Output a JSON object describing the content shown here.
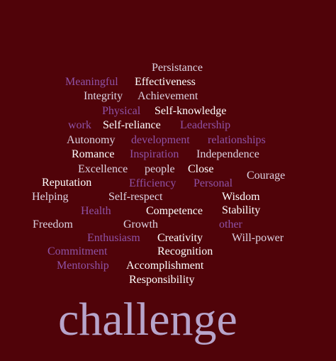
{
  "colors": {
    "background": "#500309",
    "white": "#ffffff",
    "light": "#dcd3e2",
    "purple": "#8f52a6",
    "lavender": "#b7a4ca"
  },
  "words": [
    {
      "text": "Persistance",
      "tone": "light"
    },
    {
      "text": "Meaningful",
      "tone": "purple"
    },
    {
      "text": "Effectiveness",
      "tone": "white"
    },
    {
      "text": "Integrity",
      "tone": "light"
    },
    {
      "text": "Achievement",
      "tone": "light"
    },
    {
      "text": "Physical",
      "tone": "purple"
    },
    {
      "text": "Self-knowledge",
      "tone": "white"
    },
    {
      "text": "work",
      "tone": "purple"
    },
    {
      "text": "Self-reliance",
      "tone": "white"
    },
    {
      "text": "Leadership",
      "tone": "purple"
    },
    {
      "text": "Autonomy",
      "tone": "light"
    },
    {
      "text": "development",
      "tone": "purple"
    },
    {
      "text": "relationships",
      "tone": "purple"
    },
    {
      "text": "Romance",
      "tone": "white"
    },
    {
      "text": "Inspiration",
      "tone": "purple"
    },
    {
      "text": "Independence",
      "tone": "light"
    },
    {
      "text": "Excellence",
      "tone": "light"
    },
    {
      "text": "people",
      "tone": "light"
    },
    {
      "text": "Close",
      "tone": "white"
    },
    {
      "text": "Courage",
      "tone": "light"
    },
    {
      "text": "Reputation",
      "tone": "white"
    },
    {
      "text": "Efficiency",
      "tone": "purple"
    },
    {
      "text": "Personal",
      "tone": "purple"
    },
    {
      "text": "Helping",
      "tone": "light"
    },
    {
      "text": "Self-respect",
      "tone": "light"
    },
    {
      "text": "Wisdom",
      "tone": "white"
    },
    {
      "text": "Health",
      "tone": "purple"
    },
    {
      "text": "Competence",
      "tone": "white"
    },
    {
      "text": "Stability",
      "tone": "white"
    },
    {
      "text": "Freedom",
      "tone": "light"
    },
    {
      "text": "Growth",
      "tone": "light"
    },
    {
      "text": "other",
      "tone": "purple"
    },
    {
      "text": "Enthusiasm",
      "tone": "purple"
    },
    {
      "text": "Creativity",
      "tone": "white"
    },
    {
      "text": "Will-power",
      "tone": "light"
    },
    {
      "text": "Commitment",
      "tone": "purple"
    },
    {
      "text": "Recognition",
      "tone": "white"
    },
    {
      "text": "Mentorship",
      "tone": "purple"
    },
    {
      "text": "Accomplishment",
      "tone": "white"
    },
    {
      "text": "Responsibility",
      "tone": "white"
    },
    {
      "text": "challenge",
      "tone": "lavender"
    }
  ]
}
